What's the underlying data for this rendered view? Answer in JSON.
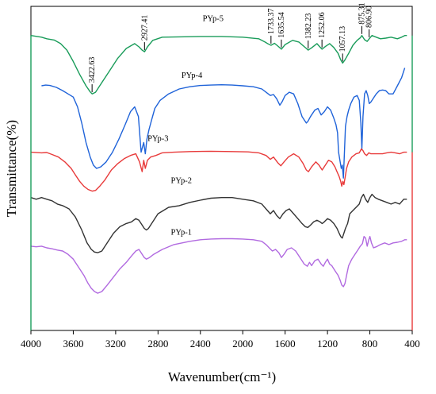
{
  "chart_data": {
    "type": "line",
    "xlabel": "Wavenumber(cm⁻¹)",
    "ylabel": "Transmittance(%)",
    "xlim": [
      4000,
      400
    ],
    "x_reversed": true,
    "y_ticks_shown": false,
    "grid": false,
    "legend": "inline labels above each curve",
    "x_ticks": [
      "4000",
      "3600",
      "3200",
      "2800",
      "2400",
      "2000",
      "1600",
      "1200",
      "800",
      "400"
    ],
    "x_tick_values": [
      4000,
      3600,
      3200,
      2800,
      2400,
      2000,
      1600,
      1200,
      800,
      400
    ],
    "peak_annotations": [
      {
        "label": "3422.63",
        "x": 3422.63
      },
      {
        "label": "2927.41",
        "x": 2927.41
      },
      {
        "label": "1733.37",
        "x": 1733.37
      },
      {
        "label": "1635.54",
        "x": 1635.54
      },
      {
        "label": "1382.23",
        "x": 1382.23
      },
      {
        "label": "1252.06",
        "x": 1252.06
      },
      {
        "label": "1057.13",
        "x": 1057.13
      },
      {
        "label": "875.31",
        "x": 875.31
      },
      {
        "label": "806.90",
        "x": 806.9
      }
    ],
    "series": [
      {
        "name": "PYp-5",
        "color": "#1a9c5a",
        "label_x": 2280,
        "label_y": 0.955,
        "x": [
          4000,
          3900,
          3850,
          3780,
          3720,
          3660,
          3600,
          3540,
          3480,
          3440,
          3422,
          3390,
          3340,
          3260,
          3180,
          3100,
          3020,
          2980,
          2950,
          2927,
          2900,
          2850,
          2760,
          2600,
          2400,
          2200,
          2000,
          1850,
          1790,
          1760,
          1733,
          1700,
          1660,
          1635,
          1600,
          1530,
          1470,
          1420,
          1382,
          1350,
          1300,
          1270,
          1252,
          1220,
          1180,
          1140,
          1100,
          1075,
          1057,
          1035,
          1000,
          960,
          920,
          890,
          875,
          850,
          825,
          806,
          780,
          740,
          700,
          650,
          600,
          540,
          500,
          470,
          460,
          450
        ],
        "y": [
          0.91,
          0.905,
          0.9,
          0.896,
          0.885,
          0.865,
          0.83,
          0.79,
          0.755,
          0.736,
          0.73,
          0.735,
          0.76,
          0.8,
          0.84,
          0.87,
          0.885,
          0.875,
          0.865,
          0.86,
          0.875,
          0.895,
          0.905,
          0.906,
          0.907,
          0.907,
          0.905,
          0.9,
          0.89,
          0.884,
          0.88,
          0.886,
          0.875,
          0.868,
          0.882,
          0.895,
          0.89,
          0.876,
          0.865,
          0.872,
          0.885,
          0.874,
          0.868,
          0.876,
          0.885,
          0.873,
          0.855,
          0.835,
          0.825,
          0.835,
          0.855,
          0.88,
          0.895,
          0.903,
          0.91,
          0.897,
          0.892,
          0.9,
          0.91,
          0.905,
          0.9,
          0.902,
          0.905,
          0.9,
          0.905,
          0.91,
          0.91,
          0.91
        ]
      },
      {
        "name": "PYp-4",
        "color": "#1f63d9",
        "label_x": 2480,
        "label_y": 0.78,
        "x": [
          3900,
          3860,
          3820,
          3760,
          3700,
          3650,
          3600,
          3560,
          3520,
          3480,
          3440,
          3410,
          3380,
          3340,
          3290,
          3230,
          3170,
          3110,
          3060,
          3020,
          2985,
          2960,
          2935,
          2920,
          2905,
          2885,
          2860,
          2830,
          2780,
          2700,
          2600,
          2500,
          2400,
          2300,
          2200,
          2100,
          2000,
          1900,
          1820,
          1780,
          1740,
          1710,
          1680,
          1650,
          1630,
          1600,
          1560,
          1520,
          1480,
          1440,
          1400,
          1385,
          1360,
          1320,
          1290,
          1260,
          1230,
          1200,
          1170,
          1140,
          1120,
          1105,
          1095,
          1080,
          1070,
          1060,
          1050,
          1040,
          1030,
          1015,
          1000,
          980,
          950,
          920,
          900,
          885,
          875,
          865,
          850,
          835,
          820,
          806,
          790,
          770,
          740,
          710,
          680,
          650,
          620,
          580,
          540,
          500,
          470
        ],
        "y": [
          0.755,
          0.757,
          0.756,
          0.75,
          0.74,
          0.73,
          0.72,
          0.69,
          0.64,
          0.58,
          0.535,
          0.51,
          0.5,
          0.505,
          0.52,
          0.55,
          0.59,
          0.635,
          0.675,
          0.69,
          0.66,
          0.55,
          0.58,
          0.545,
          0.59,
          0.62,
          0.65,
          0.685,
          0.71,
          0.73,
          0.745,
          0.752,
          0.756,
          0.757,
          0.758,
          0.757,
          0.755,
          0.752,
          0.745,
          0.735,
          0.725,
          0.728,
          0.715,
          0.695,
          0.705,
          0.725,
          0.735,
          0.73,
          0.7,
          0.66,
          0.64,
          0.645,
          0.66,
          0.68,
          0.685,
          0.665,
          0.675,
          0.69,
          0.68,
          0.655,
          0.635,
          0.61,
          0.55,
          0.52,
          0.5,
          0.51,
          0.47,
          0.55,
          0.63,
          0.66,
          0.68,
          0.7,
          0.72,
          0.725,
          0.71,
          0.64,
          0.56,
          0.66,
          0.73,
          0.74,
          0.725,
          0.7,
          0.705,
          0.715,
          0.73,
          0.74,
          0.742,
          0.74,
          0.73,
          0.73,
          0.755,
          0.78,
          0.81
        ]
      },
      {
        "name": "PYp-3",
        "color": "#e83a3a",
        "label_x": 2800,
        "label_y": 0.585,
        "x": [
          4000,
          3900,
          3850,
          3800,
          3740,
          3680,
          3620,
          3580,
          3540,
          3500,
          3460,
          3420,
          3390,
          3350,
          3300,
          3240,
          3180,
          3120,
          3060,
          3010,
          2975,
          2950,
          2935,
          2920,
          2900,
          2870,
          2820,
          2760,
          2650,
          2500,
          2300,
          2100,
          1950,
          1850,
          1780,
          1740,
          1710,
          1670,
          1640,
          1610,
          1570,
          1520,
          1470,
          1430,
          1400,
          1380,
          1350,
          1310,
          1280,
          1250,
          1220,
          1190,
          1160,
          1130,
          1110,
          1090,
          1075,
          1065,
          1055,
          1045,
          1035,
          1020,
          1000,
          970,
          930,
          900,
          880,
          865,
          850,
          830,
          810,
          790,
          760,
          720,
          680,
          640,
          600,
          560,
          520,
          480,
          450
        ],
        "y": [
          0.55,
          0.548,
          0.549,
          0.543,
          0.535,
          0.52,
          0.5,
          0.48,
          0.46,
          0.445,
          0.435,
          0.43,
          0.432,
          0.445,
          0.465,
          0.495,
          0.515,
          0.53,
          0.54,
          0.545,
          0.52,
          0.49,
          0.525,
          0.5,
          0.525,
          0.535,
          0.54,
          0.548,
          0.55,
          0.552,
          0.553,
          0.552,
          0.551,
          0.548,
          0.54,
          0.528,
          0.535,
          0.518,
          0.508,
          0.52,
          0.535,
          0.545,
          0.535,
          0.515,
          0.495,
          0.49,
          0.505,
          0.52,
          0.51,
          0.495,
          0.51,
          0.525,
          0.52,
          0.505,
          0.49,
          0.475,
          0.46,
          0.445,
          0.46,
          0.45,
          0.47,
          0.5,
          0.52,
          0.535,
          0.545,
          0.548,
          0.56,
          0.555,
          0.545,
          0.54,
          0.548,
          0.545,
          0.545,
          0.545,
          0.545,
          0.548,
          0.55,
          0.548,
          0.545,
          0.55,
          0.55
        ]
      },
      {
        "name": "PYp-2",
        "color": "#333333",
        "label_x": 2580,
        "label_y": 0.455,
        "x": [
          4000,
          3950,
          3900,
          3850,
          3800,
          3750,
          3700,
          3640,
          3580,
          3520,
          3470,
          3430,
          3400,
          3370,
          3330,
          3280,
          3220,
          3160,
          3100,
          3050,
          3010,
          2980,
          2950,
          2930,
          2910,
          2890,
          2860,
          2800,
          2700,
          2600,
          2500,
          2400,
          2300,
          2200,
          2100,
          2000,
          1900,
          1820,
          1780,
          1740,
          1710,
          1680,
          1650,
          1620,
          1590,
          1560,
          1520,
          1480,
          1440,
          1410,
          1385,
          1360,
          1330,
          1300,
          1270,
          1250,
          1230,
          1200,
          1170,
          1140,
          1110,
          1090,
          1075,
          1060,
          1045,
          1030,
          1010,
          990,
          960,
          930,
          900,
          880,
          860,
          840,
          820,
          800,
          780,
          750,
          720,
          680,
          640,
          600,
          560,
          520,
          480,
          450
        ],
        "y": [
          0.41,
          0.405,
          0.41,
          0.405,
          0.4,
          0.39,
          0.385,
          0.375,
          0.35,
          0.31,
          0.27,
          0.25,
          0.242,
          0.24,
          0.245,
          0.27,
          0.3,
          0.32,
          0.33,
          0.335,
          0.345,
          0.34,
          0.325,
          0.315,
          0.31,
          0.315,
          0.33,
          0.36,
          0.38,
          0.385,
          0.395,
          0.402,
          0.408,
          0.41,
          0.41,
          0.405,
          0.4,
          0.39,
          0.375,
          0.36,
          0.37,
          0.355,
          0.345,
          0.36,
          0.37,
          0.375,
          0.36,
          0.345,
          0.33,
          0.32,
          0.318,
          0.325,
          0.335,
          0.34,
          0.335,
          0.33,
          0.335,
          0.345,
          0.34,
          0.33,
          0.315,
          0.3,
          0.29,
          0.285,
          0.3,
          0.315,
          0.33,
          0.36,
          0.37,
          0.38,
          0.39,
          0.41,
          0.42,
          0.405,
          0.395,
          0.41,
          0.42,
          0.41,
          0.405,
          0.4,
          0.395,
          0.39,
          0.395,
          0.39,
          0.405,
          0.405
        ]
      },
      {
        "name": "PYp-1",
        "color": "#b16ae0",
        "label_x": 2580,
        "label_y": 0.295,
        "x": [
          4000,
          3950,
          3900,
          3850,
          3800,
          3750,
          3700,
          3650,
          3600,
          3550,
          3500,
          3460,
          3430,
          3400,
          3370,
          3330,
          3280,
          3220,
          3160,
          3100,
          3050,
          3010,
          2980,
          2950,
          2930,
          2910,
          2880,
          2840,
          2760,
          2650,
          2500,
          2400,
          2300,
          2200,
          2100,
          2000,
          1900,
          1820,
          1780,
          1750,
          1720,
          1690,
          1660,
          1635,
          1610,
          1580,
          1540,
          1500,
          1460,
          1420,
          1390,
          1370,
          1350,
          1320,
          1290,
          1260,
          1240,
          1220,
          1200,
          1180,
          1160,
          1140,
          1120,
          1100,
          1080,
          1065,
          1050,
          1035,
          1020,
          1000,
          970,
          940,
          910,
          890,
          870,
          855,
          840,
          825,
          810,
          800,
          785,
          765,
          740,
          700,
          660,
          620,
          580,
          540,
          500,
          470,
          450
        ],
        "y": [
          0.26,
          0.258,
          0.26,
          0.255,
          0.252,
          0.248,
          0.245,
          0.235,
          0.22,
          0.195,
          0.17,
          0.145,
          0.13,
          0.12,
          0.115,
          0.12,
          0.14,
          0.165,
          0.19,
          0.21,
          0.23,
          0.245,
          0.25,
          0.235,
          0.225,
          0.22,
          0.225,
          0.235,
          0.25,
          0.265,
          0.275,
          0.28,
          0.282,
          0.283,
          0.283,
          0.282,
          0.28,
          0.275,
          0.265,
          0.255,
          0.245,
          0.25,
          0.24,
          0.225,
          0.235,
          0.25,
          0.255,
          0.245,
          0.225,
          0.205,
          0.198,
          0.21,
          0.2,
          0.215,
          0.22,
          0.205,
          0.198,
          0.21,
          0.22,
          0.205,
          0.2,
          0.19,
          0.18,
          0.17,
          0.155,
          0.14,
          0.135,
          0.145,
          0.17,
          0.2,
          0.22,
          0.235,
          0.25,
          0.26,
          0.268,
          0.29,
          0.285,
          0.26,
          0.28,
          0.29,
          0.27,
          0.255,
          0.258,
          0.265,
          0.27,
          0.265,
          0.27,
          0.272,
          0.275,
          0.28,
          0.28
        ]
      }
    ]
  }
}
